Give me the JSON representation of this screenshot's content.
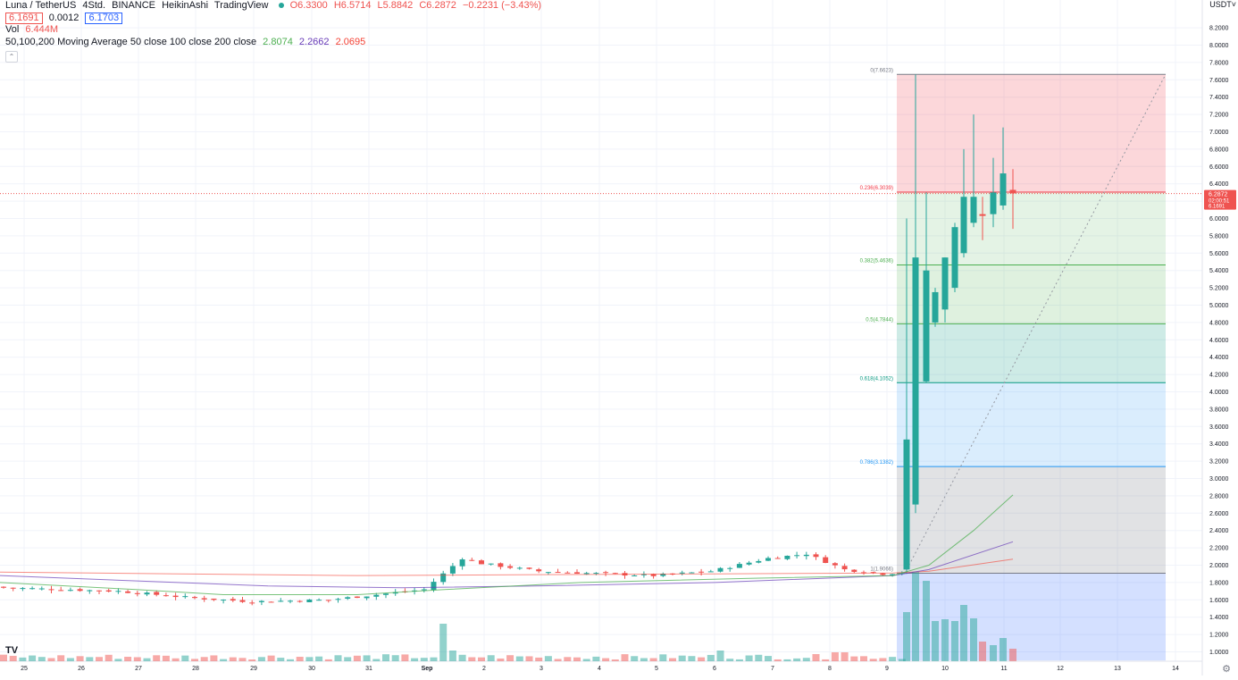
{
  "legend": {
    "symbol": "Luna / TetherUS",
    "interval": "4Std.",
    "exchange": "BINANCE",
    "chart_style": "HeikinAshi",
    "source": "TradingView",
    "open": "O6.3300",
    "high": "H6.5714",
    "low": "L5.8842",
    "close": "C6.2872",
    "change": "−0.2231 (−3.43%)",
    "bid": "6.1691",
    "spread": "0.0012",
    "ask": "6.1703",
    "vol_label": "Vol",
    "vol_value": "6.444M",
    "ma_label": "50,100,200 Moving Average 50 close 100 close 200 close",
    "ma50": "2.8074",
    "ma100": "2.2662",
    "ma200": "2.0695"
  },
  "colors": {
    "up": "#26a69a",
    "down": "#ef5350",
    "ma50": "#4caf50",
    "ma100": "#673ab7",
    "ma200": "#f44336"
  },
  "price_axis": {
    "currency": "USDT",
    "ticks": [
      "8.2000",
      "8.0000",
      "7.8000",
      "7.6000",
      "7.4000",
      "7.2000",
      "7.0000",
      "6.8000",
      "6.6000",
      "6.4000",
      "6.2000",
      "6.0000",
      "5.8000",
      "5.6000",
      "5.4000",
      "5.2000",
      "5.0000",
      "4.8000",
      "4.6000",
      "4.4000",
      "4.2000",
      "4.0000",
      "3.8000",
      "3.6000",
      "3.4000",
      "3.2000",
      "3.0000",
      "2.8000",
      "2.6000",
      "2.4000",
      "2.2000",
      "2.0000",
      "1.8000",
      "1.6000",
      "1.4000",
      "1.2000",
      "1.0000"
    ],
    "last_price": "6.2872",
    "countdown": "02:00:51",
    "bid_label": "6.1691"
  },
  "time_axis": {
    "labels": [
      "25",
      "26",
      "27",
      "28",
      "29",
      "30",
      "31",
      "Sep",
      "2",
      "3",
      "4",
      "5",
      "6",
      "7",
      "8",
      "9",
      "10",
      "11",
      "12",
      "13",
      "14"
    ]
  },
  "fib_labels": {
    "l0": "0(7.6623)",
    "l236": "0.236(6.3039)",
    "l382": "0.382(5.4636)",
    "l5": "0.5(4.7844)",
    "l618": "0.618(4.1052)",
    "l786": "0.786(3.1382)",
    "l1": "1(1.9066)"
  },
  "chart_data": {
    "type": "candlestick",
    "title": "Luna / TetherUS",
    "x_axis": "time (4h bars)",
    "y_axis": "USDT",
    "ylim": [
      0.9,
      8.3
    ],
    "ohlc_style": "HeikinAshi",
    "candles_sample": [
      {
        "date": "Aug 25",
        "open": 1.75,
        "high": 1.78,
        "low": 1.72,
        "close": 1.74
      },
      {
        "date": "Aug 27",
        "open": 1.68,
        "high": 1.72,
        "low": 1.6,
        "close": 1.64
      },
      {
        "date": "Aug 29",
        "open": 1.62,
        "high": 1.66,
        "low": 1.55,
        "close": 1.6
      },
      {
        "date": "Aug 31",
        "open": 1.7,
        "high": 1.78,
        "low": 1.62,
        "close": 1.72
      },
      {
        "date": "Sep 1",
        "open": 1.9,
        "high": 2.22,
        "low": 1.88,
        "close": 2.05
      },
      {
        "date": "Sep 6",
        "open": 2.05,
        "high": 2.15,
        "low": 2.0,
        "close": 2.12
      },
      {
        "date": "Sep 8",
        "open": 1.98,
        "high": 2.08,
        "low": 1.92,
        "close": 2.02
      },
      {
        "date": "Sep 9",
        "open": 3.45,
        "high": 7.66,
        "low": 1.9,
        "close": 5.55
      },
      {
        "date": "Sep 10",
        "open": 5.9,
        "high": 7.2,
        "low": 5.6,
        "close": 6.25
      },
      {
        "date": "Sep 11",
        "open": 6.33,
        "high": 6.57,
        "low": 5.88,
        "close": 6.29
      }
    ],
    "moving_averages": [
      {
        "name": "MA50",
        "last": 2.8074
      },
      {
        "name": "MA100",
        "last": 2.2662
      },
      {
        "name": "MA200",
        "last": 2.0695
      }
    ],
    "fibonacci": [
      {
        "level": 0,
        "price": 7.6623
      },
      {
        "level": 0.236,
        "price": 6.3039
      },
      {
        "level": 0.382,
        "price": 5.4636
      },
      {
        "level": 0.5,
        "price": 4.7844
      },
      {
        "level": 0.618,
        "price": 4.1052
      },
      {
        "level": 0.786,
        "price": 3.1382
      },
      {
        "level": 1,
        "price": 1.9066
      }
    ],
    "volume_last": "6.444M"
  }
}
